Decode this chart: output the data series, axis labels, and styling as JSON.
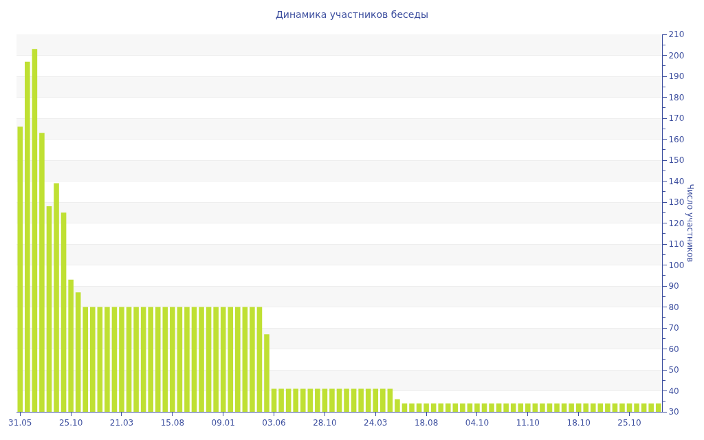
{
  "chart_data": {
    "type": "bar",
    "title": "Динамика участников беседы",
    "ylabel": "Число участников",
    "categories": [
      "31.05",
      null,
      null,
      null,
      null,
      null,
      null,
      "25.10",
      null,
      null,
      null,
      null,
      null,
      null,
      "21.03",
      null,
      null,
      null,
      null,
      null,
      null,
      "15.08",
      null,
      null,
      null,
      null,
      null,
      null,
      "09.01",
      null,
      null,
      null,
      null,
      null,
      null,
      "03.06",
      null,
      null,
      null,
      null,
      null,
      null,
      "28.10",
      null,
      null,
      null,
      null,
      null,
      null,
      "24.03",
      null,
      null,
      null,
      null,
      null,
      null,
      "18.08",
      null,
      null,
      null,
      null,
      null,
      null,
      "04.10",
      null,
      null,
      null,
      null,
      null,
      null,
      "11.10",
      null,
      null,
      null,
      null,
      null,
      null,
      "18.10",
      null,
      null,
      null,
      null,
      null,
      null,
      "25.10",
      null,
      null,
      null,
      null
    ],
    "values": [
      166,
      197,
      203,
      163,
      128,
      139,
      125,
      93,
      87,
      80,
      80,
      80,
      80,
      80,
      80,
      80,
      80,
      80,
      80,
      80,
      80,
      80,
      80,
      80,
      80,
      80,
      80,
      80,
      80,
      80,
      80,
      80,
      80,
      80,
      67,
      41,
      41,
      41,
      41,
      41,
      41,
      41,
      41,
      41,
      41,
      41,
      41,
      41,
      41,
      41,
      41,
      41,
      36,
      34,
      34,
      34,
      34,
      34,
      34,
      34,
      34,
      34,
      34,
      34,
      34,
      34,
      34,
      34,
      34,
      34,
      34,
      34,
      34,
      34,
      34,
      34,
      34,
      34,
      34,
      34,
      34,
      34,
      34,
      34,
      34,
      34,
      34,
      34,
      34
    ],
    "color": "#bfe033",
    "ylim": [
      30,
      210
    ],
    "yticks": [
      30,
      40,
      50,
      60,
      70,
      80,
      90,
      100,
      110,
      120,
      130,
      140,
      150,
      160,
      170,
      180,
      190,
      200,
      210
    ],
    "grid": true
  }
}
